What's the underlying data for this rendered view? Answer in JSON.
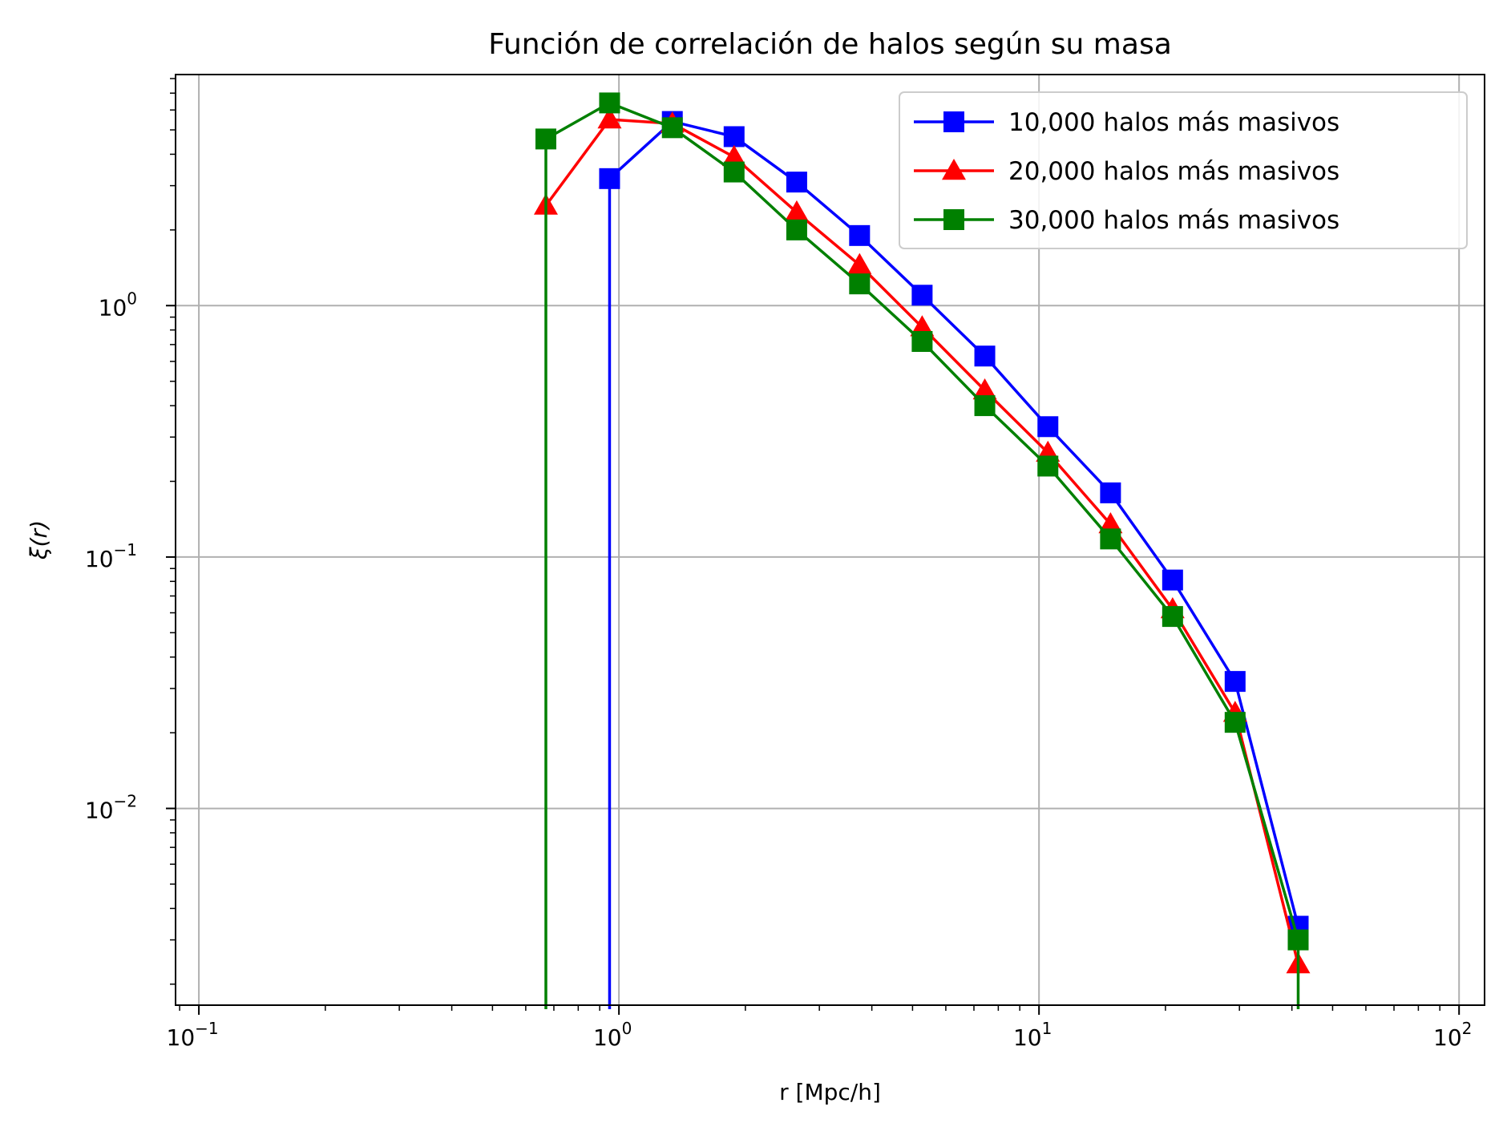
{
  "chart_data": {
    "type": "line",
    "title": "Función de correlación de halos según su masa",
    "xlabel": "r [Mpc/h]",
    "ylabel": "ξ(r)",
    "xscale": "log",
    "yscale": "log",
    "xlim": [
      0.088,
      115
    ],
    "ylim": [
      0.00165,
      8.3
    ],
    "grid": true,
    "legend_position": "top-right",
    "x_ticks": [
      {
        "value": 0.1,
        "base": "10",
        "exp": "−1"
      },
      {
        "value": 1,
        "base": "10",
        "exp": "0"
      },
      {
        "value": 10,
        "base": "10",
        "exp": "1"
      },
      {
        "value": 100,
        "base": "10",
        "exp": "2"
      }
    ],
    "y_ticks": [
      {
        "value": 0.01,
        "base": "10",
        "exp": "−2"
      },
      {
        "value": 0.1,
        "base": "10",
        "exp": "−1"
      },
      {
        "value": 1,
        "base": "10",
        "exp": "0"
      }
    ],
    "series": [
      {
        "name": "10,000 halos más masivos",
        "color": "#0000ff",
        "marker": "square",
        "x": [
          0.95,
          1.34,
          1.88,
          2.65,
          3.74,
          5.27,
          7.43,
          10.5,
          14.8,
          20.8,
          29.3,
          41.4
        ],
        "y": [
          3.2,
          5.4,
          4.7,
          3.1,
          1.9,
          1.1,
          0.63,
          0.33,
          0.18,
          0.081,
          0.032,
          0.0034
        ],
        "drop_at_start": true
      },
      {
        "name": "20,000 halos más masivos",
        "color": "#ff0000",
        "marker": "triangle",
        "x": [
          0.67,
          0.95,
          1.34,
          1.88,
          2.65,
          3.74,
          5.27,
          7.43,
          10.5,
          14.8,
          20.8,
          29.3,
          41.4
        ],
        "y": [
          2.5,
          5.5,
          5.3,
          3.9,
          2.35,
          1.45,
          0.82,
          0.46,
          0.26,
          0.135,
          0.062,
          0.024,
          0.0024
        ],
        "drop_at_start": false
      },
      {
        "name": "30,000 halos más masivos",
        "color": "#008000",
        "marker": "square",
        "x": [
          0.67,
          0.95,
          1.34,
          1.88,
          2.65,
          3.74,
          5.27,
          7.43,
          10.5,
          14.8,
          20.8,
          29.3,
          41.4
        ],
        "y": [
          4.6,
          6.4,
          5.1,
          3.4,
          2.0,
          1.22,
          0.72,
          0.4,
          0.23,
          0.118,
          0.058,
          0.022,
          0.003
        ],
        "drop_at_start": true,
        "drop_at_end": true
      }
    ]
  }
}
